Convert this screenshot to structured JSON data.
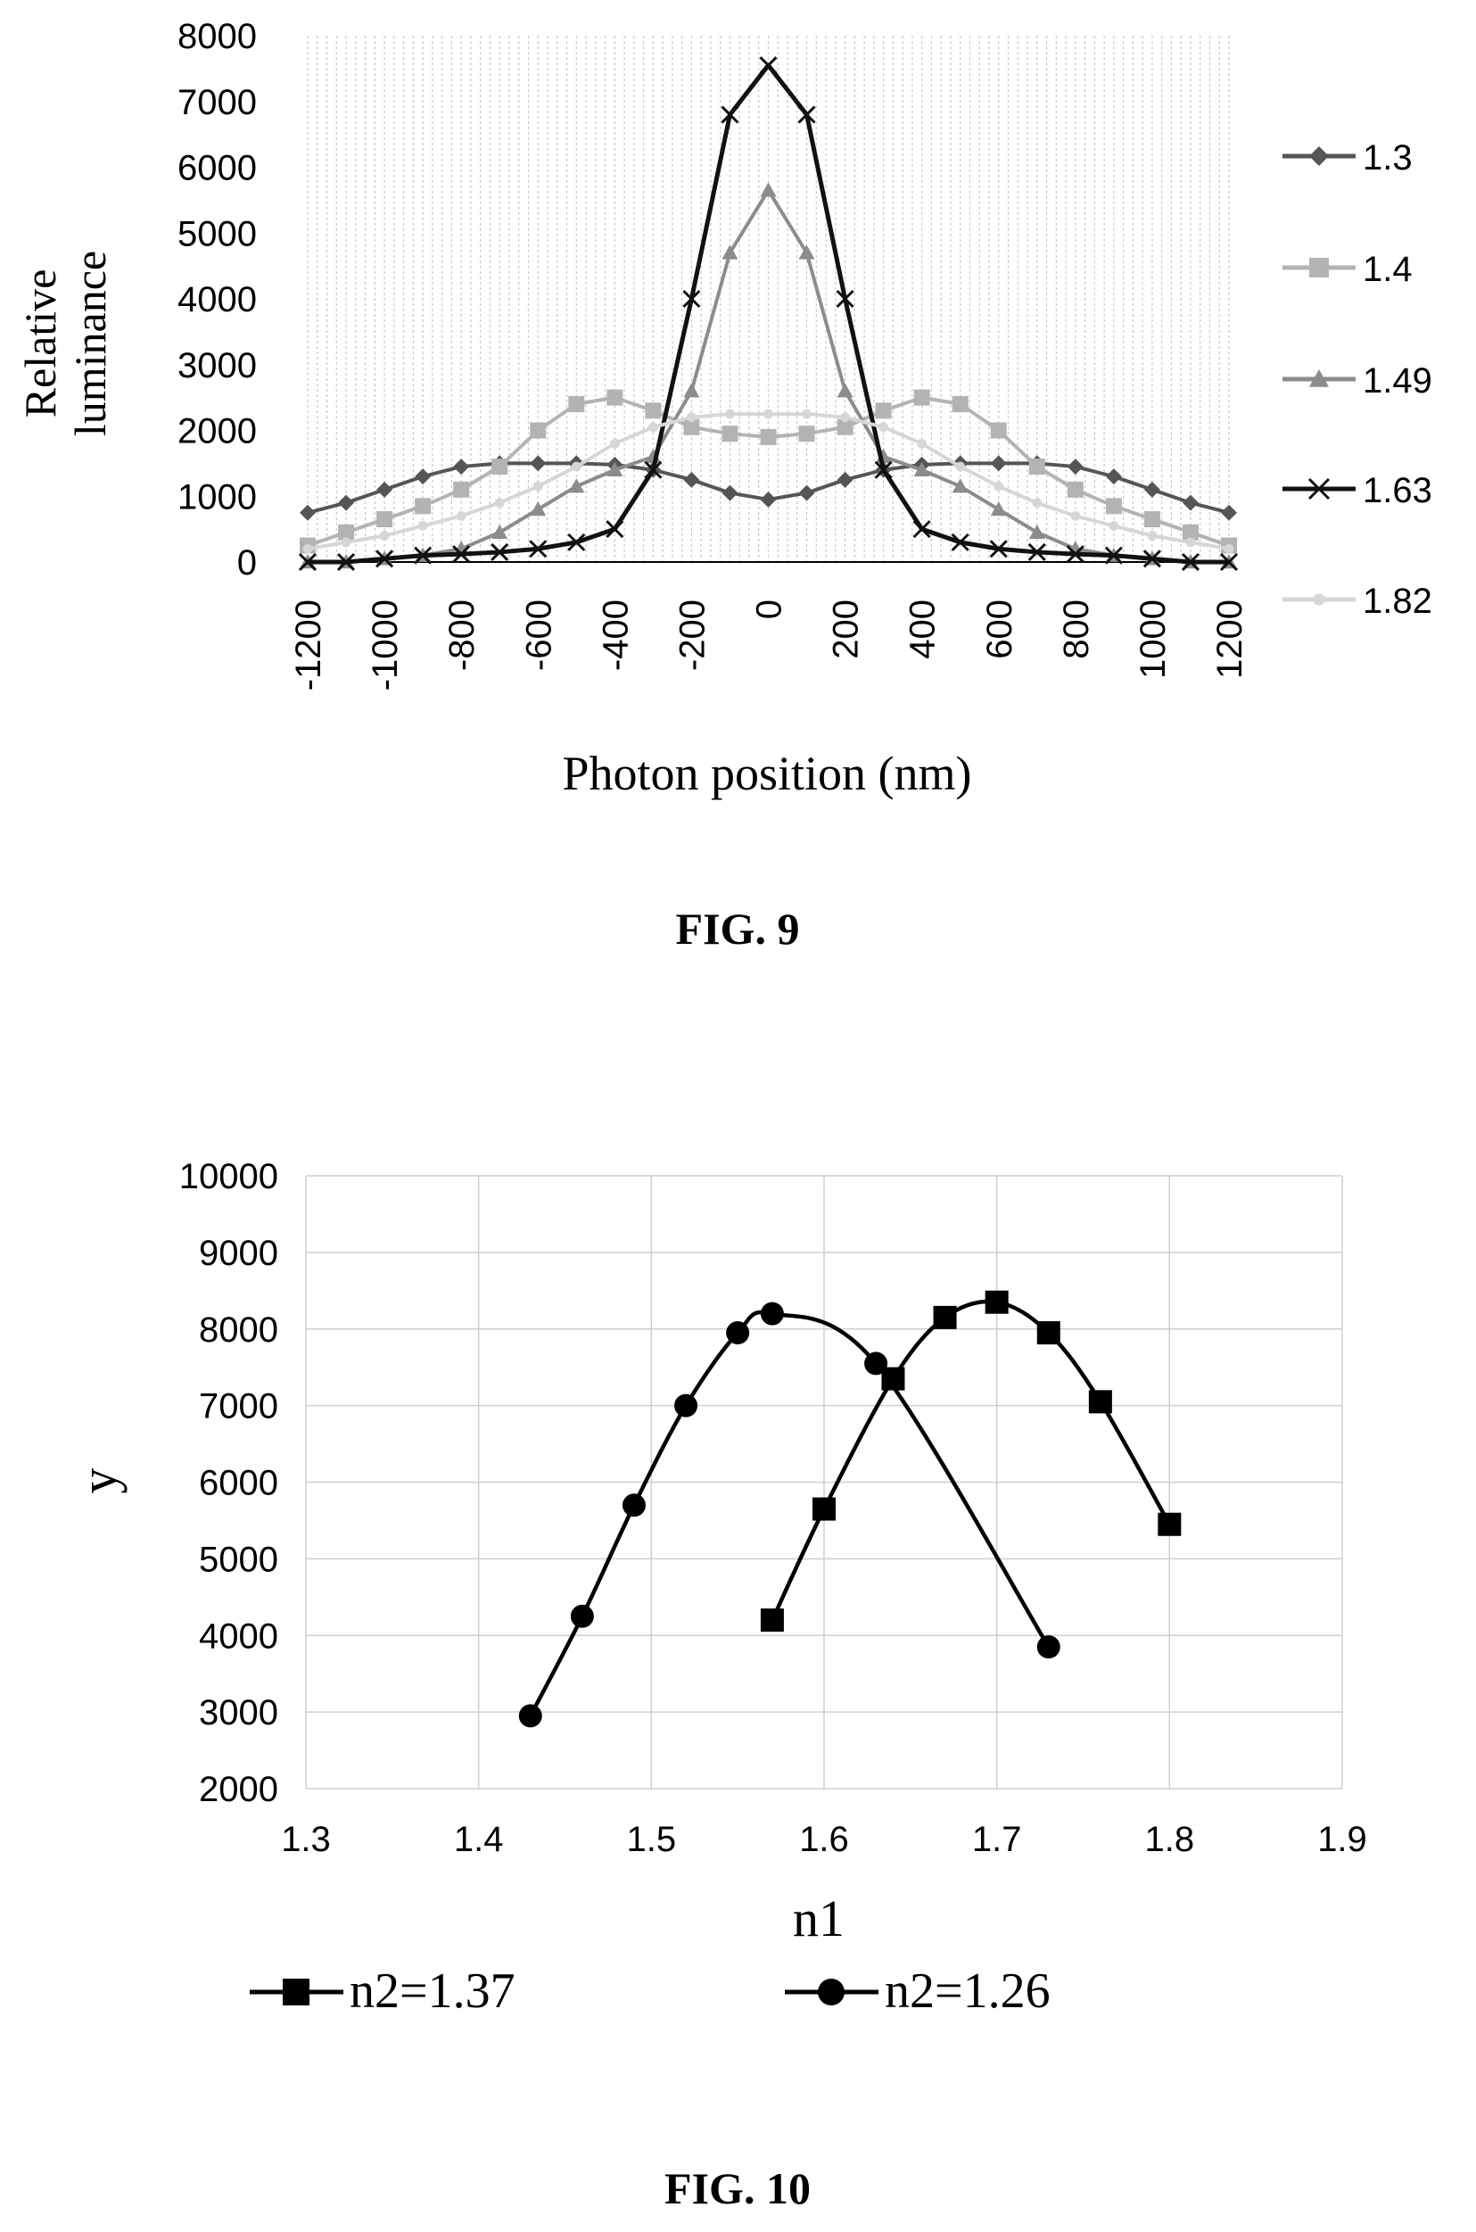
{
  "figures": {
    "fig9_caption": "FIG. 9",
    "fig10_caption": "FIG. 10"
  },
  "chart_data": [
    {
      "type": "line",
      "xlabel": "Photon position (nm)",
      "ylabel_lines": [
        "Relative",
        "luminance"
      ],
      "ylim": [
        0,
        8000
      ],
      "yticks": [
        0,
        1000,
        2000,
        3000,
        4000,
        5000,
        6000,
        7000,
        8000
      ],
      "xlim": [
        -1200,
        1200
      ],
      "xticks": [
        -1200,
        -1000,
        -800,
        -600,
        -400,
        -200,
        0,
        200,
        400,
        600,
        800,
        1000,
        1200
      ],
      "xtick_labels": [
        "-1200",
        "-1000",
        "-800",
        "-600",
        "-400",
        "-200",
        "0",
        "200",
        "400",
        "600",
        "800",
        "1000",
        "1200"
      ],
      "grid": "vertical",
      "legend": "right",
      "series": [
        {
          "name": "1.3",
          "color": "#555555",
          "marker": "diamond",
          "x": [
            -1200,
            -1100,
            -1000,
            -900,
            -800,
            -700,
            -600,
            -500,
            -400,
            -300,
            -200,
            -100,
            0,
            100,
            200,
            300,
            400,
            500,
            600,
            700,
            800,
            900,
            1000,
            1100,
            1200
          ],
          "y": [
            750,
            900,
            1100,
            1300,
            1450,
            1500,
            1500,
            1500,
            1480,
            1400,
            1250,
            1050,
            950,
            1050,
            1250,
            1400,
            1480,
            1500,
            1500,
            1500,
            1450,
            1300,
            1100,
            900,
            750
          ]
        },
        {
          "name": "1.4",
          "color": "#b3b3b3",
          "marker": "square",
          "x": [
            -1200,
            -1100,
            -1000,
            -900,
            -800,
            -700,
            -600,
            -500,
            -400,
            -300,
            -200,
            -100,
            0,
            100,
            200,
            300,
            400,
            500,
            600,
            700,
            800,
            900,
            1000,
            1100,
            1200
          ],
          "y": [
            250,
            450,
            650,
            850,
            1100,
            1450,
            2000,
            2400,
            2500,
            2300,
            2050,
            1950,
            1900,
            1950,
            2050,
            2300,
            2500,
            2400,
            2000,
            1450,
            1100,
            850,
            650,
            450,
            250
          ]
        },
        {
          "name": "1.49",
          "color": "#8c8c8c",
          "marker": "triangle",
          "x": [
            -1200,
            -1100,
            -1000,
            -900,
            -800,
            -700,
            -600,
            -500,
            -400,
            -300,
            -200,
            -100,
            0,
            100,
            200,
            300,
            400,
            500,
            600,
            700,
            800,
            900,
            1000,
            1100,
            1200
          ],
          "y": [
            0,
            0,
            50,
            100,
            200,
            450,
            800,
            1150,
            1400,
            1600,
            2600,
            4700,
            5650,
            4700,
            2600,
            1600,
            1400,
            1150,
            800,
            450,
            200,
            100,
            50,
            0,
            0
          ]
        },
        {
          "name": "1.63",
          "color": "#111111",
          "marker": "x",
          "x": [
            -1200,
            -1100,
            -1000,
            -900,
            -800,
            -700,
            -600,
            -500,
            -400,
            -300,
            -200,
            -100,
            0,
            100,
            200,
            300,
            400,
            500,
            600,
            700,
            800,
            900,
            1000,
            1100,
            1200
          ],
          "y": [
            0,
            0,
            50,
            100,
            120,
            150,
            200,
            300,
            500,
            1400,
            4000,
            6800,
            7550,
            6800,
            4000,
            1400,
            500,
            300,
            200,
            150,
            120,
            100,
            50,
            0,
            0
          ]
        },
        {
          "name": "1.82",
          "color": "#d6d6d6",
          "marker": "dot",
          "x": [
            -1200,
            -1100,
            -1000,
            -900,
            -800,
            -700,
            -600,
            -500,
            -400,
            -300,
            -200,
            -100,
            0,
            100,
            200,
            300,
            400,
            500,
            600,
            700,
            800,
            900,
            1000,
            1100,
            1200
          ],
          "y": [
            200,
            300,
            400,
            550,
            700,
            900,
            1150,
            1450,
            1800,
            2050,
            2200,
            2250,
            2250,
            2250,
            2200,
            2050,
            1800,
            1450,
            1150,
            900,
            700,
            550,
            400,
            300,
            200
          ]
        }
      ]
    },
    {
      "type": "line",
      "xlabel": "n1",
      "ylabel": "y",
      "xlim": [
        1.3,
        1.9
      ],
      "xticks": [
        1.3,
        1.4,
        1.5,
        1.6,
        1.7,
        1.8,
        1.9
      ],
      "xtick_labels": [
        "1.3",
        "1.4",
        "1.5",
        "1.6",
        "1.7",
        "1.8",
        "1.9"
      ],
      "ylim": [
        2000,
        10000
      ],
      "yticks": [
        2000,
        3000,
        4000,
        5000,
        6000,
        7000,
        8000,
        9000,
        10000
      ],
      "grid": "both",
      "legend": "bottom",
      "series": [
        {
          "name": "n2=1.37",
          "color": "#000000",
          "marker": "square",
          "x": [
            1.57,
            1.6,
            1.64,
            1.67,
            1.7,
            1.73,
            1.76,
            1.8
          ],
          "y": [
            4200,
            5650,
            7350,
            8150,
            8350,
            7950,
            7050,
            5450
          ]
        },
        {
          "name": "n2=1.26",
          "color": "#000000",
          "marker": "circle",
          "x": [
            1.43,
            1.46,
            1.49,
            1.52,
            1.55,
            1.57,
            1.63,
            1.73
          ],
          "y": [
            2950,
            4250,
            5700,
            7000,
            7950,
            8200,
            7550,
            3850
          ]
        }
      ]
    }
  ]
}
